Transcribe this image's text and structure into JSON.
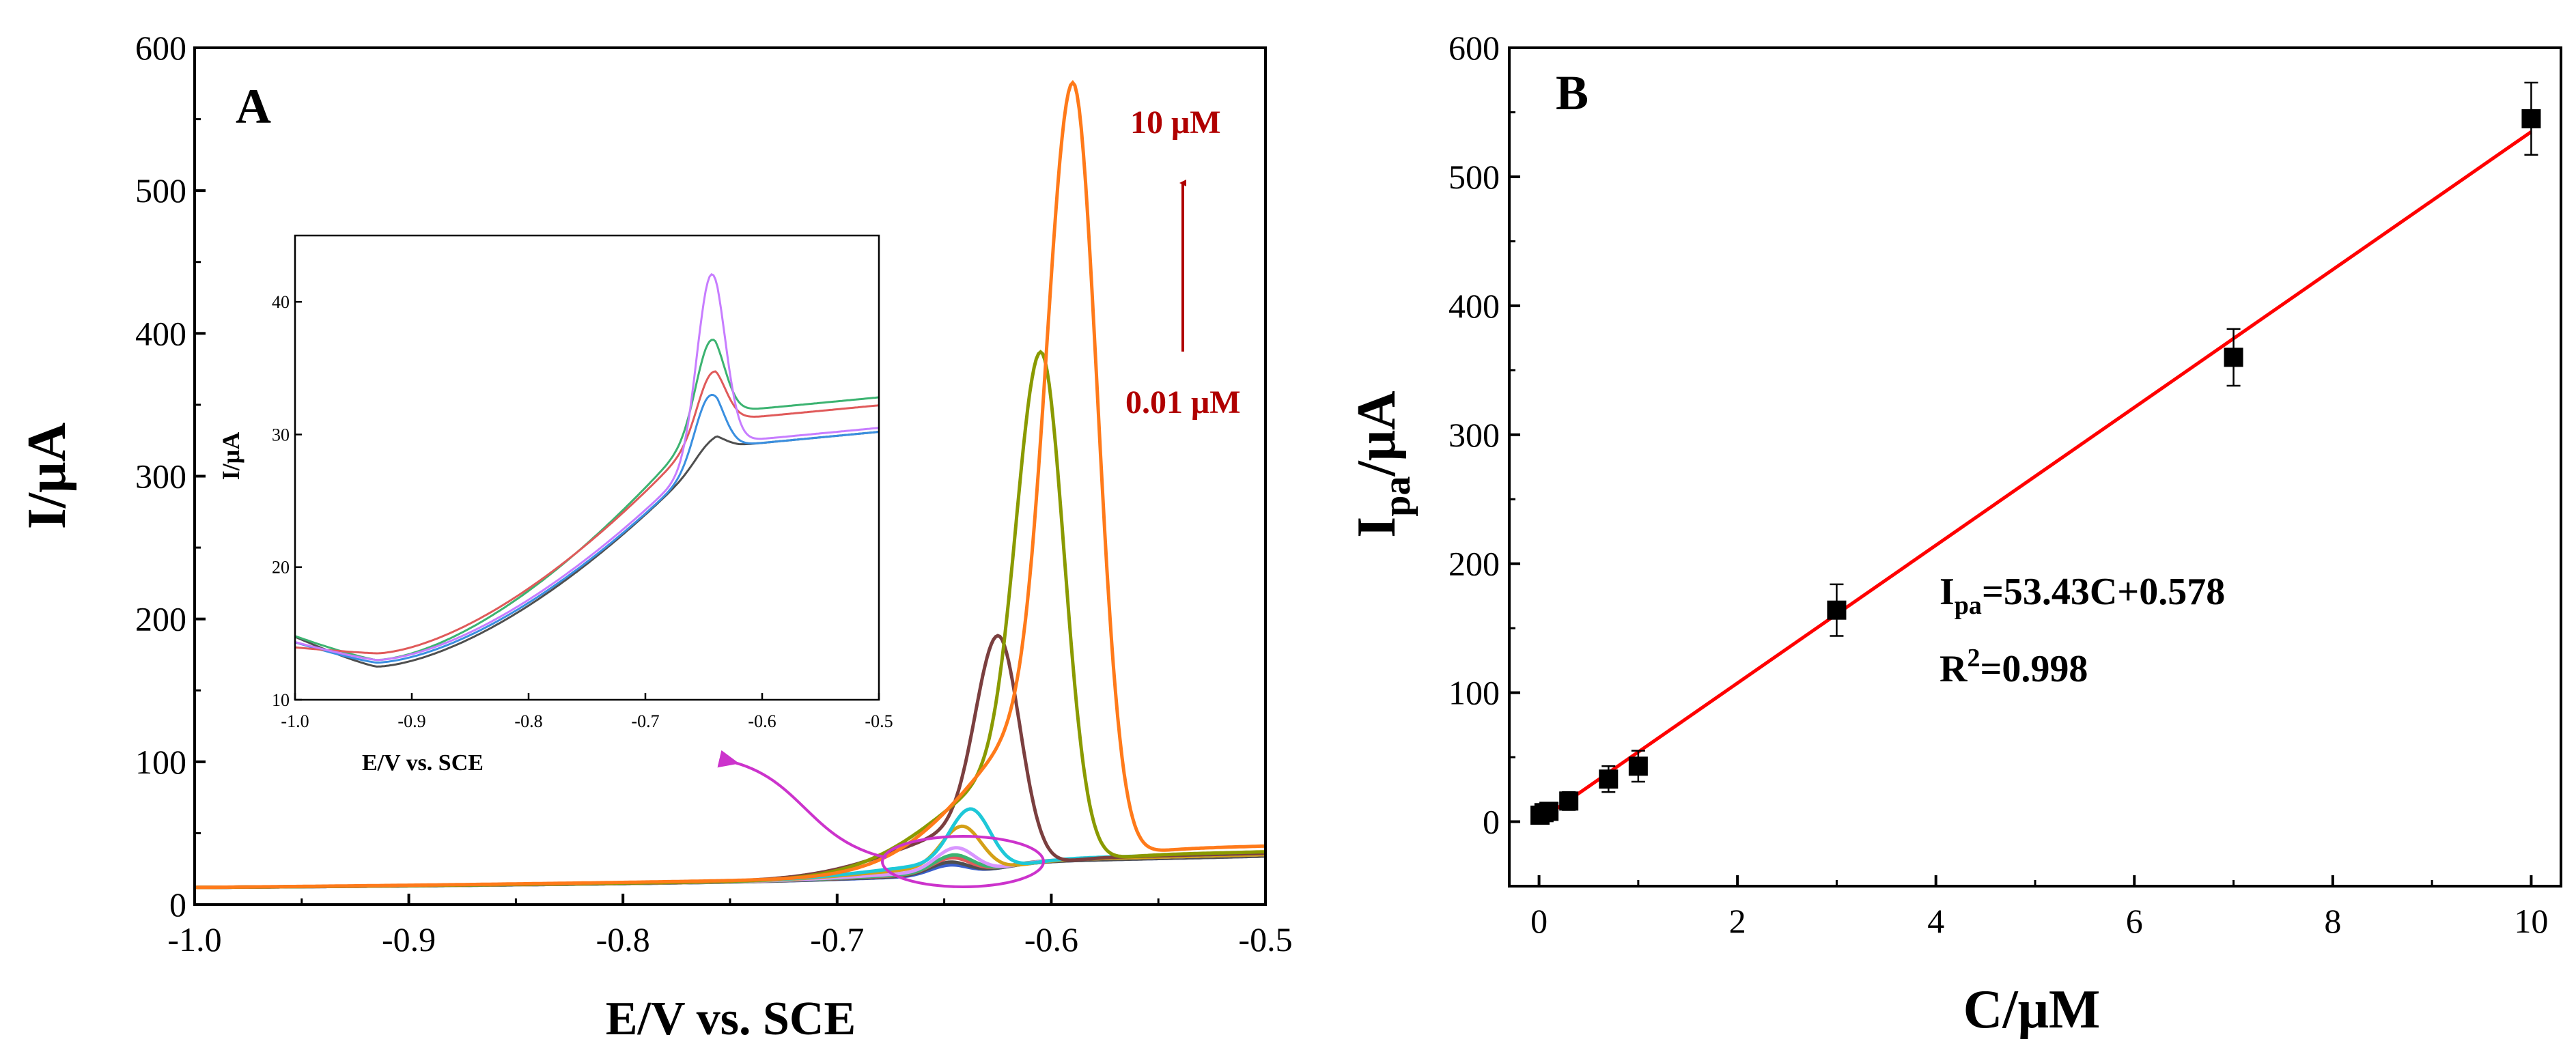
{
  "chart_data": [
    {
      "type": "line",
      "panel_label": "A",
      "xlabel": "E/V vs. SCE",
      "ylabel": "I/μA",
      "xlim": [
        -1.0,
        -0.5
      ],
      "ylim": [
        0,
        600
      ],
      "xticks": [
        "-1.0",
        "-0.9",
        "-0.8",
        "-0.7",
        "-0.6",
        "-0.5"
      ],
      "yticks": [
        "0",
        "100",
        "200",
        "300",
        "400",
        "500",
        "600"
      ],
      "annotation_top": "10 μM",
      "annotation_bottom": "0.01 μM",
      "series": [
        {
          "name": "c1",
          "color": "#3a5fcd",
          "base_start": 12,
          "base_end": 28,
          "peak_e": -0.648,
          "peak_i": 31
        },
        {
          "name": "c2",
          "color": "#4f4f4f",
          "base_start": 12,
          "base_end": 28,
          "peak_e": -0.648,
          "peak_i": 33
        },
        {
          "name": "c3",
          "color": "#e05a5a",
          "base_start": 12,
          "base_end": 29,
          "peak_e": -0.647,
          "peak_i": 36
        },
        {
          "name": "c4",
          "color": "#3cb371",
          "base_start": 12,
          "base_end": 29,
          "peak_e": -0.646,
          "peak_i": 38
        },
        {
          "name": "c5",
          "color": "#d896ff",
          "base_start": 12,
          "base_end": 29,
          "peak_e": -0.645,
          "peak_i": 43
        },
        {
          "name": "c6",
          "color": "#d4a017",
          "base_start": 12,
          "base_end": 29,
          "peak_e": -0.642,
          "peak_i": 58
        },
        {
          "name": "c7",
          "color": "#1ec8d8",
          "base_start": 12,
          "base_end": 30,
          "peak_e": -0.638,
          "peak_i": 70
        },
        {
          "name": "c8",
          "color": "#7b3f3f",
          "base_start": 12,
          "base_end": 30,
          "peak_e": -0.625,
          "peak_i": 191
        },
        {
          "name": "c9",
          "color": "#8a9a00",
          "base_start": 12,
          "base_end": 31,
          "peak_e": -0.605,
          "peak_i": 389
        },
        {
          "name": "c10",
          "color": "#ff7a1a",
          "base_start": 12,
          "base_end": 35,
          "peak_e": -0.59,
          "peak_i": 577
        }
      ],
      "inset": {
        "xlabel": "E/V vs. SCE",
        "ylabel": "I/μA",
        "xlim": [
          -1.0,
          -0.5
        ],
        "ylim": [
          10,
          45
        ],
        "xticks": [
          "-1.0",
          "-0.9",
          "-0.8",
          "-0.7",
          "-0.6",
          "-0.5"
        ],
        "yticks": [
          "10",
          "20",
          "30",
          "40"
        ],
        "series": [
          {
            "name": "i1",
            "color": "#4f4f4f",
            "start": 15,
            "min": 12.5,
            "peak_e": -0.646,
            "peak_i": 29,
            "end": 30.2
          },
          {
            "name": "i2",
            "color": "#3a8fe0",
            "start": 14.5,
            "min": 12.8,
            "peak_e": -0.646,
            "peak_i": 32.5,
            "end": 30.2
          },
          {
            "name": "i3",
            "color": "#3cb371",
            "start": 15,
            "min": 13,
            "peak_e": -0.645,
            "peak_i": 36.5,
            "end": 32.8
          },
          {
            "name": "i4",
            "color": "#e05a5a",
            "start": 14,
            "min": 13.5,
            "peak_e": -0.644,
            "peak_i": 34,
            "end": 32.2
          },
          {
            "name": "i5",
            "color": "#c77dff",
            "start": 14.5,
            "min": 13,
            "peak_e": -0.644,
            "peak_i": 41.5,
            "end": 30.5
          }
        ]
      }
    },
    {
      "type": "scatter",
      "panel_label": "B",
      "xlabel": "C/μM",
      "ylabel_main": "I",
      "ylabel_sub": "pa",
      "ylabel_rest": "/μA",
      "xlim": [
        -0.3,
        10.3
      ],
      "ylim": [
        -50,
        600
      ],
      "xticks": [
        "0",
        "2",
        "4",
        "6",
        "8",
        "10"
      ],
      "yticks": [
        "0",
        "100",
        "200",
        "300",
        "400",
        "500",
        "600"
      ],
      "points": [
        {
          "x": 0.01,
          "y": 5,
          "err": 5
        },
        {
          "x": 0.05,
          "y": 7,
          "err": 5
        },
        {
          "x": 0.1,
          "y": 8,
          "err": 5
        },
        {
          "x": 0.3,
          "y": 16,
          "err": 7
        },
        {
          "x": 0.7,
          "y": 33,
          "err": 10
        },
        {
          "x": 1.0,
          "y": 43,
          "err": 12
        },
        {
          "x": 3.0,
          "y": 164,
          "err": 20
        },
        {
          "x": 7.0,
          "y": 360,
          "err": 22
        },
        {
          "x": 10.0,
          "y": 545,
          "err": 28
        }
      ],
      "fit": {
        "slope": 53.43,
        "intercept": 0.578,
        "color": "#ff0000"
      },
      "equation_main": "I",
      "equation_sub": "pa",
      "equation_rest": "=53.43C+0.578",
      "r2_main": "R",
      "r2_sup": "2",
      "r2_rest": "=0.998"
    }
  ]
}
